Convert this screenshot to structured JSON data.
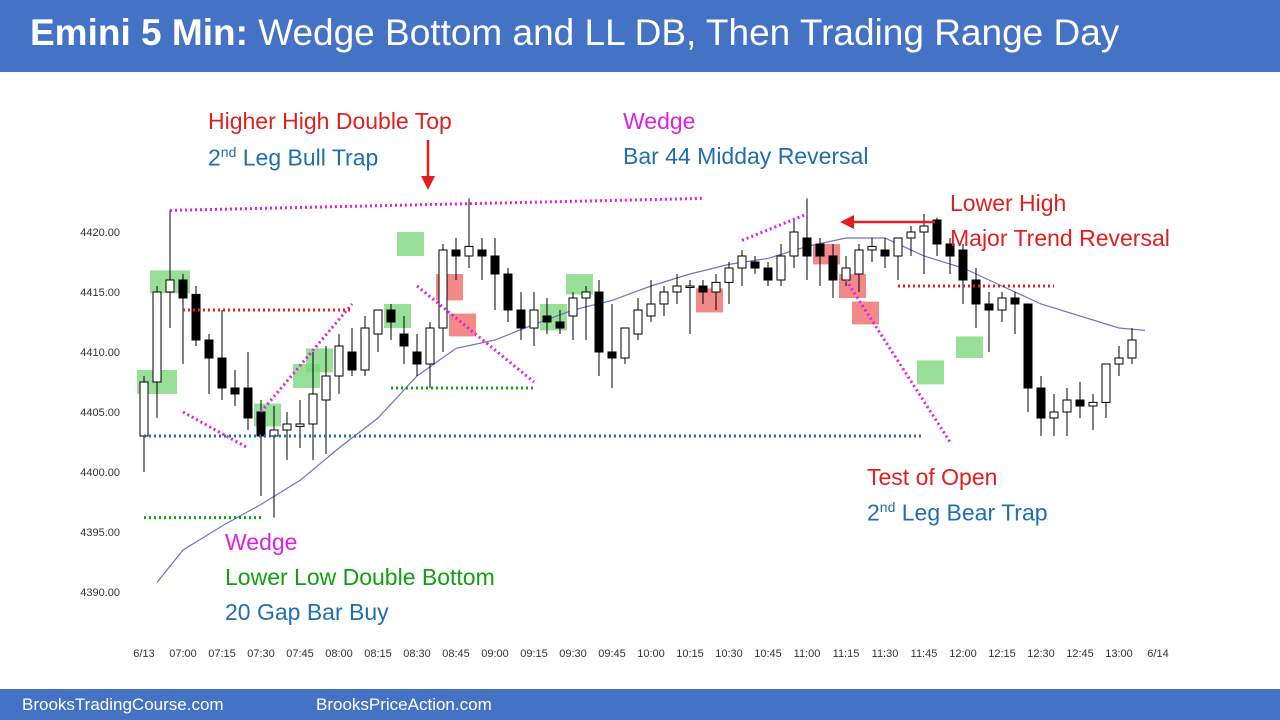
{
  "title": {
    "bold": "Emini 5 Min:",
    "rest": "Wedge Bottom and LL DB, Then Trading Range Day"
  },
  "footer": {
    "left": "BrooksTradingCourse.com",
    "right": "BrooksPriceAction.com"
  },
  "annotations": {
    "hh_double_top": "Higher High Double Top",
    "bull_trap_2nd": "2",
    "bull_trap_nd": "nd",
    "bull_trap_rest": " Leg Bull Trap",
    "wedge_top": "Wedge",
    "bar44": "Bar 44 Midday Reversal",
    "lower_high": "Lower High",
    "major_trend_reversal": "Major Trend Reversal",
    "test_of_open": "Test of Open",
    "bear_trap_2nd": "2",
    "bear_trap_nd": "nd",
    "bear_trap_rest": " Leg Bear Trap",
    "wedge_bottom": "Wedge",
    "lower_low_db": "Lower Low Double Bottom",
    "gap_bar_buy": "20 Gap Bar Buy"
  },
  "colors": {
    "header": "#4472c4",
    "bull_signal": "#7ed87e",
    "bear_signal": "#f06a6a",
    "ema": "#6f73c9",
    "magenta": "#e020e0",
    "green_line": "#10a010",
    "red_line": "#e02020",
    "blue_line": "#1f6fb0"
  },
  "chart_data": {
    "type": "candlestick",
    "y_ticks": [
      "4420.00",
      "4415.00",
      "4410.00",
      "4405.00",
      "4400.00",
      "4395.00",
      "4390.00"
    ],
    "ylim": [
      4387.5,
      4422.5
    ],
    "x_ticks": [
      {
        "bar": 0,
        "label": "6/13"
      },
      {
        "bar": 3,
        "label": "07:00"
      },
      {
        "bar": 6,
        "label": "07:15"
      },
      {
        "bar": 9,
        "label": "07:30"
      },
      {
        "bar": 12,
        "label": "07:45"
      },
      {
        "bar": 15,
        "label": "08:00"
      },
      {
        "bar": 18,
        "label": "08:15"
      },
      {
        "bar": 21,
        "label": "08:30"
      },
      {
        "bar": 24,
        "label": "08:45"
      },
      {
        "bar": 27,
        "label": "09:00"
      },
      {
        "bar": 30,
        "label": "09:15"
      },
      {
        "bar": 33,
        "label": "09:30"
      },
      {
        "bar": 36,
        "label": "09:45"
      },
      {
        "bar": 39,
        "label": "10:00"
      },
      {
        "bar": 42,
        "label": "10:15"
      },
      {
        "bar": 45,
        "label": "10:30"
      },
      {
        "bar": 48,
        "label": "10:45"
      },
      {
        "bar": 51,
        "label": "11:00"
      },
      {
        "bar": 54,
        "label": "11:15"
      },
      {
        "bar": 57,
        "label": "11:30"
      },
      {
        "bar": 60,
        "label": "11:45"
      },
      {
        "bar": 63,
        "label": "12:00"
      },
      {
        "bar": 66,
        "label": "12:15"
      },
      {
        "bar": 69,
        "label": "12:30"
      },
      {
        "bar": 72,
        "label": "12:45"
      },
      {
        "bar": 75,
        "label": "13:00"
      },
      {
        "bar": 78,
        "label": "6/14"
      }
    ],
    "bars": [
      {
        "o": 4403.0,
        "h": 4408.0,
        "l": 4400.0,
        "c": 4407.5
      },
      {
        "o": 4407.5,
        "h": 4415.5,
        "l": 4404.5,
        "c": 4415.0
      },
      {
        "o": 4415.0,
        "h": 4421.8,
        "l": 4412.0,
        "c": 4416.0
      },
      {
        "o": 4416.0,
        "h": 4416.5,
        "l": 4409.0,
        "c": 4414.5
      },
      {
        "o": 4414.8,
        "h": 4415.5,
        "l": 4410.5,
        "c": 4411.0
      },
      {
        "o": 4411.0,
        "h": 4411.5,
        "l": 4406.5,
        "c": 4409.5
      },
      {
        "o": 4409.5,
        "h": 4413.5,
        "l": 4406.0,
        "c": 4407.0
      },
      {
        "o": 4407.0,
        "h": 4408.5,
        "l": 4405.5,
        "c": 4406.5
      },
      {
        "o": 4407.0,
        "h": 4410.0,
        "l": 4403.5,
        "c": 4404.5
      },
      {
        "o": 4405.0,
        "h": 4406.0,
        "l": 4398.0,
        "c": 4403.0
      },
      {
        "o": 4403.0,
        "h": 4405.5,
        "l": 4396.2,
        "c": 4403.5
      },
      {
        "o": 4403.5,
        "h": 4405.0,
        "l": 4401.0,
        "c": 4404.0
      },
      {
        "o": 4403.8,
        "h": 4406.0,
        "l": 4402.0,
        "c": 4404.0
      },
      {
        "o": 4404.0,
        "h": 4410.0,
        "l": 4401.0,
        "c": 4406.5
      },
      {
        "o": 4406.0,
        "h": 4410.5,
        "l": 4401.5,
        "c": 4408.0
      },
      {
        "o": 4408.0,
        "h": 4411.5,
        "l": 4406.5,
        "c": 4410.5
      },
      {
        "o": 4410.0,
        "h": 4412.0,
        "l": 4408.0,
        "c": 4408.5
      },
      {
        "o": 4408.5,
        "h": 4413.0,
        "l": 4408.0,
        "c": 4412.0
      },
      {
        "o": 4411.5,
        "h": 4413.5,
        "l": 4410.0,
        "c": 4413.5
      },
      {
        "o": 4413.5,
        "h": 4414.0,
        "l": 4411.0,
        "c": 4412.5
      },
      {
        "o": 4411.5,
        "h": 4413.0,
        "l": 4409.0,
        "c": 4410.5
      },
      {
        "o": 4410.0,
        "h": 4411.5,
        "l": 4408.0,
        "c": 4409.0
      },
      {
        "o": 4409.0,
        "h": 4412.5,
        "l": 4407.0,
        "c": 4412.0
      },
      {
        "o": 4412.0,
        "h": 4419.0,
        "l": 4410.0,
        "c": 4418.5
      },
      {
        "o": 4418.5,
        "h": 4419.5,
        "l": 4416.0,
        "c": 4418.0
      },
      {
        "o": 4418.0,
        "h": 4422.8,
        "l": 4417.0,
        "c": 4418.8
      },
      {
        "o": 4418.5,
        "h": 4419.5,
        "l": 4416.0,
        "c": 4418.0
      },
      {
        "o": 4418.0,
        "h": 4419.5,
        "l": 4413.5,
        "c": 4416.5
      },
      {
        "o": 4416.5,
        "h": 4417.0,
        "l": 4412.5,
        "c": 4413.5
      },
      {
        "o": 4413.5,
        "h": 4415.0,
        "l": 4411.0,
        "c": 4412.0
      },
      {
        "o": 4412.0,
        "h": 4415.0,
        "l": 4410.5,
        "c": 4413.5
      },
      {
        "o": 4413.0,
        "h": 4414.5,
        "l": 4411.5,
        "c": 4412.5
      },
      {
        "o": 4412.5,
        "h": 4413.5,
        "l": 4411.5,
        "c": 4412.0
      },
      {
        "o": 4413.0,
        "h": 4415.0,
        "l": 4411.0,
        "c": 4414.5
      },
      {
        "o": 4414.5,
        "h": 4415.5,
        "l": 4411.0,
        "c": 4415.0
      },
      {
        "o": 4415.0,
        "h": 4416.0,
        "l": 4408.0,
        "c": 4410.0
      },
      {
        "o": 4410.0,
        "h": 4414.0,
        "l": 4407.0,
        "c": 4409.5
      },
      {
        "o": 4409.5,
        "h": 4412.0,
        "l": 4409.0,
        "c": 4412.0
      },
      {
        "o": 4411.5,
        "h": 4414.5,
        "l": 4411.0,
        "c": 4413.5
      },
      {
        "o": 4413.0,
        "h": 4416.0,
        "l": 4412.5,
        "c": 4414.0
      },
      {
        "o": 4414.0,
        "h": 4415.5,
        "l": 4413.0,
        "c": 4415.0
      },
      {
        "o": 4415.0,
        "h": 4416.5,
        "l": 4414.0,
        "c": 4415.5
      },
      {
        "o": 4415.5,
        "h": 4416.0,
        "l": 4411.5,
        "c": 4415.5
      },
      {
        "o": 4415.5,
        "h": 4416.0,
        "l": 4414.0,
        "c": 4415.0
      },
      {
        "o": 4415.0,
        "h": 4416.5,
        "l": 4413.5,
        "c": 4415.8
      },
      {
        "o": 4415.8,
        "h": 4417.5,
        "l": 4414.0,
        "c": 4417.0
      },
      {
        "o": 4417.0,
        "h": 4418.5,
        "l": 4415.5,
        "c": 4418.0
      },
      {
        "o": 4417.5,
        "h": 4418.0,
        "l": 4416.5,
        "c": 4417.0
      },
      {
        "o": 4417.0,
        "h": 4417.5,
        "l": 4415.5,
        "c": 4416.0
      },
      {
        "o": 4416.0,
        "h": 4419.0,
        "l": 4415.5,
        "c": 4418.0
      },
      {
        "o": 4418.0,
        "h": 4421.0,
        "l": 4417.0,
        "c": 4420.0
      },
      {
        "o": 4419.5,
        "h": 4422.8,
        "l": 4416.0,
        "c": 4418.0
      },
      {
        "o": 4419.0,
        "h": 4419.5,
        "l": 4415.5,
        "c": 4418.0
      },
      {
        "o": 4418.0,
        "h": 4419.0,
        "l": 4414.5,
        "c": 4416.0
      },
      {
        "o": 4416.0,
        "h": 4418.0,
        "l": 4415.5,
        "c": 4417.0
      },
      {
        "o": 4416.5,
        "h": 4419.0,
        "l": 4415.0,
        "c": 4418.5
      },
      {
        "o": 4418.5,
        "h": 4419.5,
        "l": 4417.5,
        "c": 4418.8
      },
      {
        "o": 4418.5,
        "h": 4419.5,
        "l": 4417.0,
        "c": 4418.0
      },
      {
        "o": 4418.0,
        "h": 4419.5,
        "l": 4416.0,
        "c": 4419.5
      },
      {
        "o": 4419.5,
        "h": 4420.5,
        "l": 4418.0,
        "c": 4420.0
      },
      {
        "o": 4420.0,
        "h": 4421.5,
        "l": 4416.5,
        "c": 4420.5
      },
      {
        "o": 4421.0,
        "h": 4421.2,
        "l": 4418.0,
        "c": 4419.0
      },
      {
        "o": 4419.0,
        "h": 4419.5,
        "l": 4416.5,
        "c": 4418.0
      },
      {
        "o": 4418.5,
        "h": 4419.0,
        "l": 4414.0,
        "c": 4416.0
      },
      {
        "o": 4416.0,
        "h": 4417.0,
        "l": 4412.0,
        "c": 4414.0
      },
      {
        "o": 4414.0,
        "h": 4415.0,
        "l": 4410.0,
        "c": 4413.5
      },
      {
        "o": 4413.5,
        "h": 4415.0,
        "l": 4412.5,
        "c": 4414.5
      },
      {
        "o": 4414.5,
        "h": 4415.0,
        "l": 4411.5,
        "c": 4414.0
      },
      {
        "o": 4414.0,
        "h": 4414.0,
        "l": 4405.0,
        "c": 4407.0
      },
      {
        "o": 4407.0,
        "h": 4408.0,
        "l": 4403.0,
        "c": 4404.5
      },
      {
        "o": 4404.5,
        "h": 4406.5,
        "l": 4403.0,
        "c": 4405.0
      },
      {
        "o": 4405.0,
        "h": 4407.0,
        "l": 4403.0,
        "c": 4406.0
      },
      {
        "o": 4406.0,
        "h": 4407.5,
        "l": 4404.5,
        "c": 4405.5
      },
      {
        "o": 4405.5,
        "h": 4406.5,
        "l": 4403.5,
        "c": 4405.8
      },
      {
        "o": 4405.8,
        "h": 4409.0,
        "l": 4404.5,
        "c": 4409.0
      },
      {
        "o": 4409.0,
        "h": 4410.5,
        "l": 4408.0,
        "c": 4409.5
      },
      {
        "o": 4409.5,
        "h": 4412.0,
        "l": 4409.0,
        "c": 4411.0
      }
    ],
    "ema_20": [
      {
        "bar": 1,
        "y": 4390.8
      },
      {
        "bar": 3,
        "y": 4393.5
      },
      {
        "bar": 6,
        "y": 4395.5
      },
      {
        "bar": 9,
        "y": 4397.3
      },
      {
        "bar": 12,
        "y": 4399.3
      },
      {
        "bar": 15,
        "y": 4402.0
      },
      {
        "bar": 18,
        "y": 4404.5
      },
      {
        "bar": 21,
        "y": 4408.0
      },
      {
        "bar": 24,
        "y": 4410.3
      },
      {
        "bar": 27,
        "y": 4411.0
      },
      {
        "bar": 30,
        "y": 4412.3
      },
      {
        "bar": 33,
        "y": 4413.5
      },
      {
        "bar": 36,
        "y": 4414.3
      },
      {
        "bar": 39,
        "y": 4415.5
      },
      {
        "bar": 42,
        "y": 4416.5
      },
      {
        "bar": 45,
        "y": 4417.3
      },
      {
        "bar": 48,
        "y": 4417.8
      },
      {
        "bar": 51,
        "y": 4418.8
      },
      {
        "bar": 54,
        "y": 4419.5
      },
      {
        "bar": 57,
        "y": 4419.5
      },
      {
        "bar": 60,
        "y": 4418.0
      },
      {
        "bar": 63,
        "y": 4417.0
      },
      {
        "bar": 66,
        "y": 4415.5
      },
      {
        "bar": 69,
        "y": 4414.0
      },
      {
        "bar": 72,
        "y": 4413.0
      },
      {
        "bar": 75,
        "y": 4412.0
      },
      {
        "bar": 77,
        "y": 4411.8
      }
    ]
  }
}
